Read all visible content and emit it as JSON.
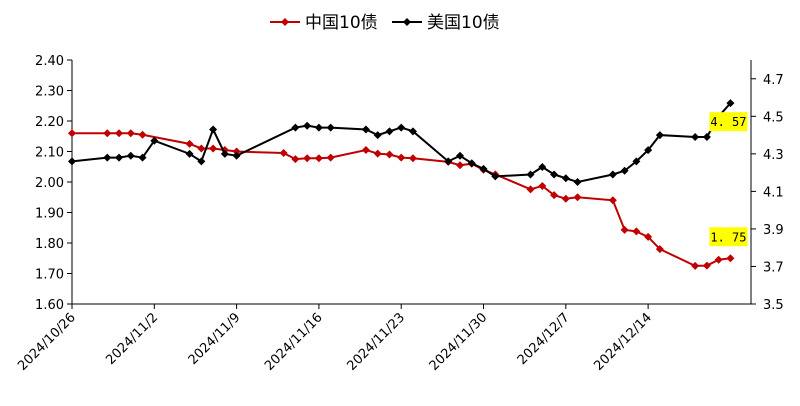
{
  "chart_data": {
    "type": "line",
    "x": [
      "2024-10-26",
      "2024-10-30",
      "2024-10-31",
      "2024-11-01",
      "2024-11-02",
      "2024-11-03",
      "2024-11-04",
      "2024-11-07",
      "2024-11-08",
      "2024-11-09",
      "2024-11-10",
      "2024-11-11",
      "2024-11-12",
      "2024-11-15",
      "2024-11-16",
      "2024-11-17",
      "2024-11-18",
      "2024-11-19",
      "2024-11-20",
      "2024-11-24",
      "2024-11-25",
      "2024-11-26",
      "2024-11-27",
      "2024-11-28",
      "2024-12-01",
      "2024-12-02",
      "2024-12-03",
      "2024-12-04",
      "2024-12-05",
      "2024-12-06",
      "2024-12-07",
      "2024-12-08",
      "2024-12-09",
      "2024-12-12",
      "2024-12-13",
      "2024-12-14",
      "2024-12-15",
      "2024-12-16",
      "2024-12-17",
      "2024-12-20",
      "2024-12-21",
      "2024-12-22",
      "2024-12-23",
      "2024-12-24"
    ],
    "x_tick_labels": [
      "2024/10/26",
      "2024/11/2",
      "2024/11/9",
      "2024/11/16",
      "2024/11/23",
      "2024/11/30",
      "2024/12/7",
      "2024/12/14"
    ],
    "x_tick_dates": [
      "2024-10-26",
      "2024-11-02",
      "2024-11-09",
      "2024-11-16",
      "2024-11-23",
      "2024-11-30",
      "2024-12-07",
      "2024-12-14"
    ],
    "y_left": {
      "range": [
        1.6,
        2.4
      ],
      "ticks": [
        "1.60",
        "1.70",
        "1.80",
        "1.90",
        "2.00",
        "2.10",
        "2.20",
        "2.30",
        "2.40"
      ]
    },
    "y_right": {
      "range": [
        3.5,
        4.8
      ],
      "ticks": [
        "3.5",
        "3.7",
        "3.9",
        "4.1",
        "4.3",
        "4.5",
        "4.7"
      ]
    },
    "series": [
      {
        "name": "中国10债",
        "axis": "left",
        "color": "#c00000",
        "marker": "diamond",
        "points": [
          [
            "2024-10-26",
            2.16
          ],
          [
            "2024-10-29",
            2.16
          ],
          [
            "2024-10-30",
            2.16
          ],
          [
            "2024-10-31",
            2.16
          ],
          [
            "2024-11-01",
            2.155
          ],
          [
            "2024-11-05",
            2.125
          ],
          [
            "2024-11-06",
            2.11
          ],
          [
            "2024-11-07",
            2.11
          ],
          [
            "2024-11-08",
            2.105
          ],
          [
            "2024-11-09",
            2.1
          ],
          [
            "2024-11-13",
            2.095
          ],
          [
            "2024-11-14",
            2.075
          ],
          [
            "2024-11-15",
            2.078
          ],
          [
            "2024-11-16",
            2.078
          ],
          [
            "2024-11-17",
            2.08
          ],
          [
            "2024-11-20",
            2.105
          ],
          [
            "2024-11-21",
            2.093
          ],
          [
            "2024-11-22",
            2.09
          ],
          [
            "2024-11-23",
            2.08
          ],
          [
            "2024-11-24",
            2.078
          ],
          [
            "2024-11-27",
            2.066
          ],
          [
            "2024-11-28",
            2.055
          ],
          [
            "2024-11-29",
            2.06
          ],
          [
            "2024-11-30",
            2.04
          ],
          [
            "2024-12-01",
            2.025
          ],
          [
            "2024-12-04",
            1.976
          ],
          [
            "2024-12-05",
            1.987
          ],
          [
            "2024-12-06",
            1.957
          ],
          [
            "2024-12-07",
            1.945
          ],
          [
            "2024-12-08",
            1.95
          ],
          [
            "2024-12-11",
            1.94
          ],
          [
            "2024-12-12",
            1.843
          ],
          [
            "2024-12-13",
            1.838
          ],
          [
            "2024-12-14",
            1.82
          ],
          [
            "2024-12-15",
            1.78
          ],
          [
            "2024-12-18",
            1.725
          ],
          [
            "2024-12-19",
            1.726
          ],
          [
            "2024-12-20",
            1.745
          ],
          [
            "2024-12-21",
            1.75
          ]
        ]
      },
      {
        "name": "美国10债",
        "axis": "right",
        "color": "#000000",
        "marker": "diamond",
        "points": [
          [
            "2024-10-26",
            4.26
          ],
          [
            "2024-10-29",
            4.28
          ],
          [
            "2024-10-30",
            4.28
          ],
          [
            "2024-10-31",
            4.29
          ],
          [
            "2024-11-01",
            4.28
          ],
          [
            "2024-11-02",
            4.37
          ],
          [
            "2024-11-05",
            4.3
          ],
          [
            "2024-11-06",
            4.26
          ],
          [
            "2024-11-07",
            4.43
          ],
          [
            "2024-11-08",
            4.3
          ],
          [
            "2024-11-09",
            4.29
          ],
          [
            "2024-11-14",
            4.44
          ],
          [
            "2024-11-15",
            4.45
          ],
          [
            "2024-11-16",
            4.44
          ],
          [
            "2024-11-17",
            4.44
          ],
          [
            "2024-11-20",
            4.43
          ],
          [
            "2024-11-21",
            4.4
          ],
          [
            "2024-11-22",
            4.42
          ],
          [
            "2024-11-23",
            4.44
          ],
          [
            "2024-11-24",
            4.42
          ],
          [
            "2024-11-27",
            4.26
          ],
          [
            "2024-11-28",
            4.29
          ],
          [
            "2024-11-29",
            4.25
          ],
          [
            "2024-11-30",
            4.22
          ],
          [
            "2024-12-01",
            4.18
          ],
          [
            "2024-12-04",
            4.19
          ],
          [
            "2024-12-05",
            4.23
          ],
          [
            "2024-12-06",
            4.19
          ],
          [
            "2024-12-07",
            4.17
          ],
          [
            "2024-12-08",
            4.15
          ],
          [
            "2024-12-11",
            4.19
          ],
          [
            "2024-12-12",
            4.21
          ],
          [
            "2024-12-13",
            4.26
          ],
          [
            "2024-12-14",
            4.32
          ],
          [
            "2024-12-15",
            4.4
          ],
          [
            "2024-12-18",
            4.39
          ],
          [
            "2024-12-19",
            4.39
          ],
          [
            "2024-12-20",
            4.5
          ],
          [
            "2024-12-21",
            4.57
          ]
        ]
      }
    ],
    "annotations": [
      {
        "text": "4. 57",
        "series": "美国10债",
        "bg": "#ffff00"
      },
      {
        "text": "1. 75",
        "series": "中国10债",
        "bg": "#ffff00"
      }
    ],
    "legend": {
      "position": "top-center"
    },
    "grid": false
  }
}
